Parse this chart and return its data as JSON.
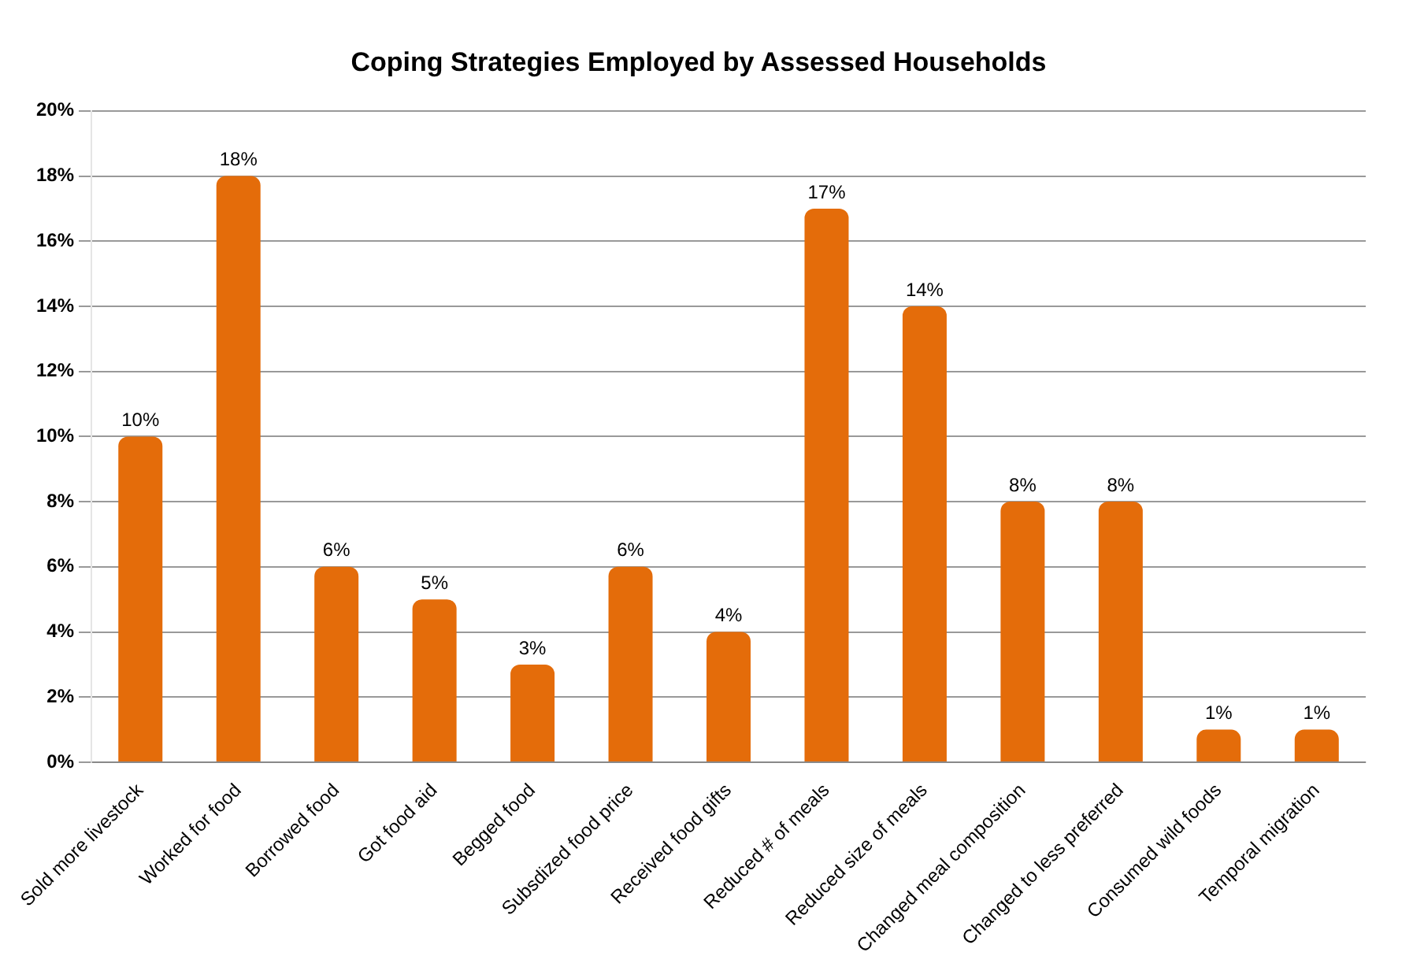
{
  "chart_data": {
    "type": "bar",
    "title": "Coping Strategies Employed by Assessed Households",
    "categories": [
      "Sold more livestock",
      "Worked for food",
      "Borrowed food",
      "Got food aid",
      "Begged food",
      "Subsdized food price",
      "Received food gifts",
      "Reduced # of meals",
      "Reduced size of meals",
      "Changed meal composition",
      "Changed to less preferred",
      "Consumed wild foods",
      "Temporal migration"
    ],
    "values": [
      10,
      18,
      6,
      5,
      3,
      6,
      4,
      17,
      14,
      8,
      8,
      1,
      1
    ],
    "color": "#e46c0a",
    "ylim": [
      0,
      20
    ],
    "yticks": [
      {
        "value": 0,
        "label": "0%"
      },
      {
        "value": 2,
        "label": "2%"
      },
      {
        "value": 4,
        "label": "4%"
      },
      {
        "value": 6,
        "label": "6%"
      },
      {
        "value": 8,
        "label": "8%"
      },
      {
        "value": 10,
        "label": "10%"
      },
      {
        "value": 12,
        "label": "12%"
      },
      {
        "value": 14,
        "label": "14%"
      },
      {
        "value": 16,
        "label": "16%"
      },
      {
        "value": 18,
        "label": "18%"
      },
      {
        "value": 20,
        "label": "20%"
      }
    ],
    "value_labels": [
      "10%",
      "18%",
      "6%",
      "5%",
      "3%",
      "6%",
      "4%",
      "17%",
      "14%",
      "8%",
      "8%",
      "1%",
      "1%"
    ],
    "grid": "y"
  }
}
